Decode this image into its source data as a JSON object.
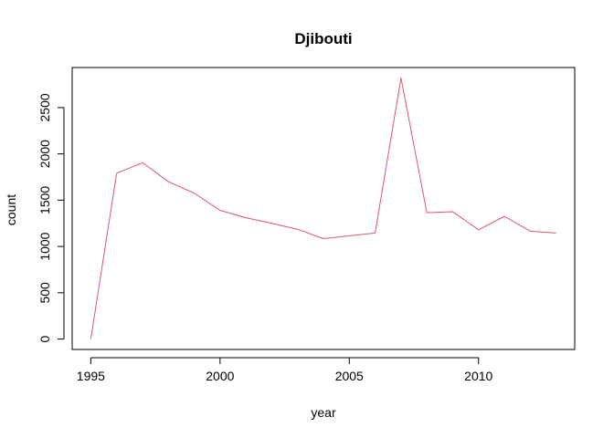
{
  "chart_data": {
    "type": "line",
    "title": "Djibouti",
    "xlabel": "year",
    "ylabel": "count",
    "x": [
      1995,
      1996,
      1997,
      1998,
      1999,
      2000,
      2001,
      2002,
      2003,
      2004,
      2005,
      2006,
      2007,
      2008,
      2009,
      2010,
      2011,
      2012,
      2013
    ],
    "series": [
      {
        "values": [
          0,
          1790,
          1905,
          1700,
          1575,
          1390,
          1310,
          1250,
          1185,
          1085,
          1115,
          1145,
          2820,
          1365,
          1375,
          1180,
          1325,
          1165,
          1145
        ],
        "color": "#DF536B"
      }
    ],
    "xlim": [
      1994.28,
      2013.72
    ],
    "ylim": [
      -112.8,
      2932.8
    ],
    "xticks": [
      1995,
      2000,
      2005,
      2010
    ],
    "xtick_labels": [
      "1995",
      "2000",
      "2005",
      "2010"
    ],
    "yticks": [
      0,
      500,
      1000,
      1500,
      2000,
      2500
    ],
    "ytick_labels": [
      "0",
      "500",
      "1000",
      "1500",
      "2000",
      "2500"
    ],
    "grid": false,
    "legend": "none"
  }
}
